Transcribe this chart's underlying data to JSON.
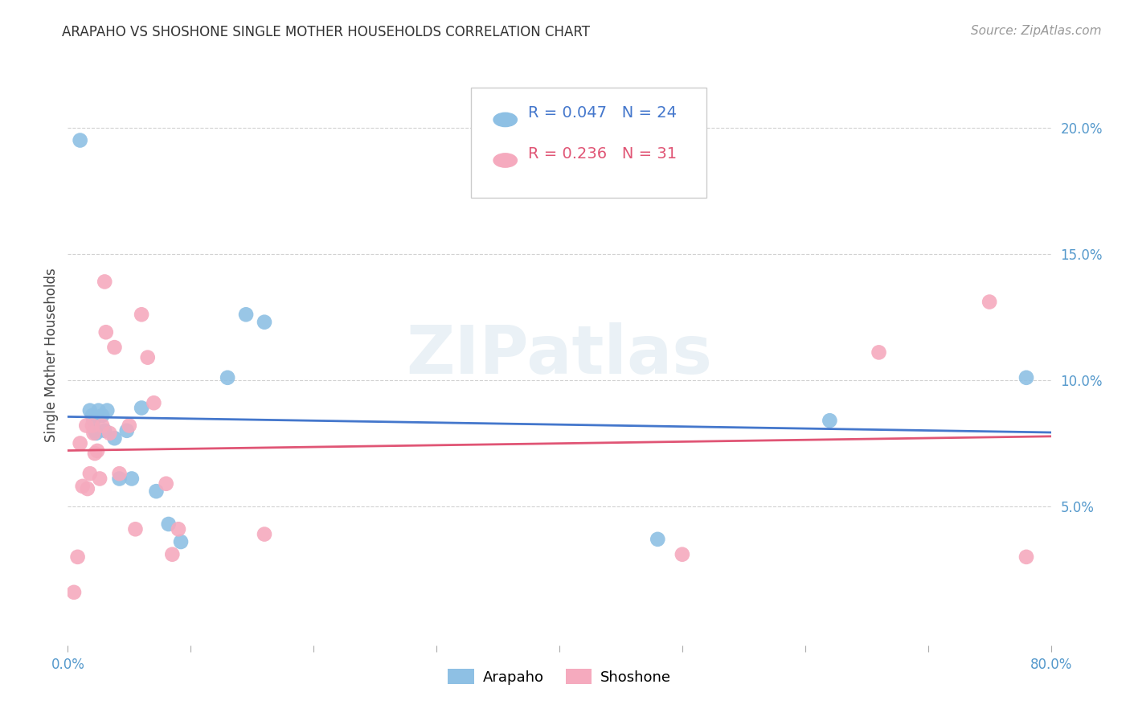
{
  "title": "ARAPAHO VS SHOSHONE SINGLE MOTHER HOUSEHOLDS CORRELATION CHART",
  "source": "Source: ZipAtlas.com",
  "ylabel": "Single Mother Households",
  "watermark": "ZIPatlas",
  "xlim": [
    0.0,
    0.8
  ],
  "ylim": [
    -0.005,
    0.225
  ],
  "xticks": [
    0.0,
    0.1,
    0.2,
    0.3,
    0.4,
    0.5,
    0.6,
    0.7,
    0.8
  ],
  "xticklabels": [
    "0.0%",
    "",
    "",
    "",
    "",
    "",
    "",
    "",
    "80.0%"
  ],
  "ytick_positions": [
    0.05,
    0.1,
    0.15,
    0.2
  ],
  "ytick_labels": [
    "5.0%",
    "10.0%",
    "15.0%",
    "20.0%"
  ],
  "arapaho_color": "#8ec0e4",
  "shoshone_color": "#f5aabe",
  "arapaho_line_color": "#4477cc",
  "shoshone_line_color": "#e05575",
  "legend_arapaho_R": "0.047",
  "legend_arapaho_N": "24",
  "legend_shoshone_R": "0.236",
  "legend_shoshone_N": "31",
  "arapaho_x": [
    0.01,
    0.018,
    0.02,
    0.021,
    0.022,
    0.023,
    0.025,
    0.028,
    0.03,
    0.032,
    0.038,
    0.042,
    0.048,
    0.052,
    0.06,
    0.072,
    0.082,
    0.092,
    0.13,
    0.145,
    0.16,
    0.48,
    0.62,
    0.78
  ],
  "arapaho_y": [
    0.195,
    0.088,
    0.086,
    0.084,
    0.08,
    0.079,
    0.088,
    0.086,
    0.08,
    0.088,
    0.077,
    0.061,
    0.08,
    0.061,
    0.089,
    0.056,
    0.043,
    0.036,
    0.101,
    0.126,
    0.123,
    0.037,
    0.084,
    0.101
  ],
  "shoshone_x": [
    0.005,
    0.008,
    0.01,
    0.012,
    0.015,
    0.016,
    0.018,
    0.02,
    0.021,
    0.022,
    0.024,
    0.026,
    0.028,
    0.03,
    0.031,
    0.034,
    0.038,
    0.042,
    0.05,
    0.055,
    0.06,
    0.065,
    0.07,
    0.08,
    0.085,
    0.09,
    0.16,
    0.5,
    0.66,
    0.75,
    0.78
  ],
  "shoshone_y": [
    0.016,
    0.03,
    0.075,
    0.058,
    0.082,
    0.057,
    0.063,
    0.082,
    0.079,
    0.071,
    0.072,
    0.061,
    0.082,
    0.139,
    0.119,
    0.079,
    0.113,
    0.063,
    0.082,
    0.041,
    0.126,
    0.109,
    0.091,
    0.059,
    0.031,
    0.041,
    0.039,
    0.031,
    0.111,
    0.131,
    0.03
  ],
  "background_color": "#ffffff",
  "grid_color": "#cccccc",
  "grid_linestyle": "--",
  "title_fontsize": 12,
  "source_fontsize": 11,
  "tick_fontsize": 12,
  "ylabel_fontsize": 12,
  "legend_fontsize": 14
}
